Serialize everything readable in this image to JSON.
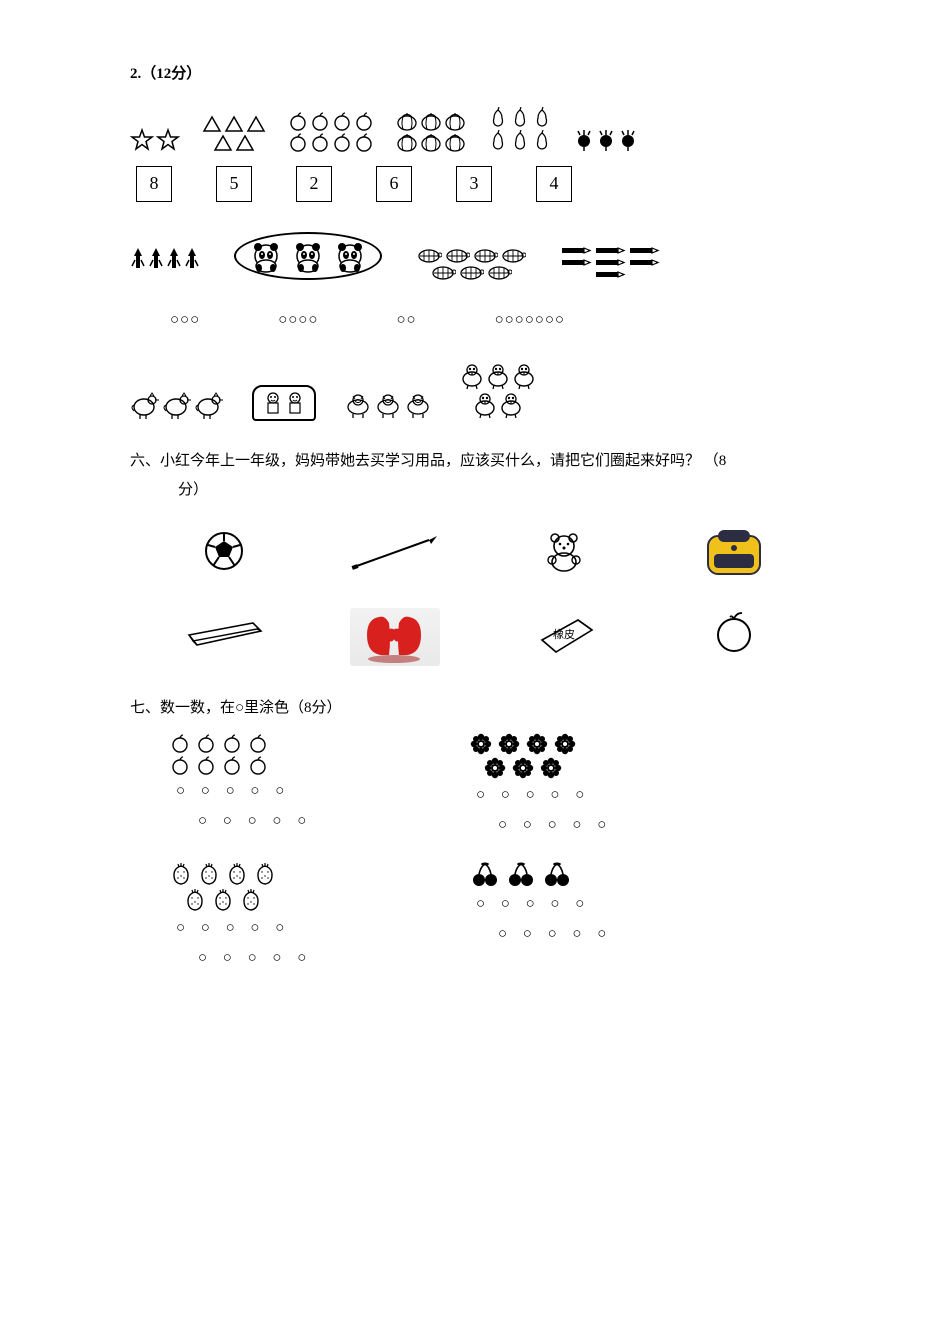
{
  "colors": {
    "text": "#000000",
    "background": "#ffffff",
    "glove_red": "#d8201e",
    "glove_shadow": "#9e1512",
    "bag_yellow": "#f0c11a",
    "bag_dark": "#2c2c42"
  },
  "q2": {
    "header": "2.（12分）",
    "items": [
      {
        "name": "stars",
        "count": 2,
        "rows": 1,
        "svg": "star"
      },
      {
        "name": "triangles",
        "count": 5,
        "rows": 2,
        "svg": "triangle"
      },
      {
        "name": "apples-a",
        "count": 8,
        "rows": 2,
        "svg": "apple-outline"
      },
      {
        "name": "pumpkins",
        "count": 6,
        "rows": 2,
        "svg": "pumpkin"
      },
      {
        "name": "pears",
        "count": 6,
        "rows": 2,
        "svg": "pear"
      },
      {
        "name": "radishes",
        "count": 3,
        "rows": 1,
        "svg": "radish"
      }
    ],
    "number_boxes": [
      8,
      5,
      2,
      6,
      3,
      4
    ],
    "row2": [
      {
        "name": "rockets",
        "count": 4,
        "svg": "rocket"
      },
      {
        "name": "pandas",
        "count": 3,
        "svg": "panda",
        "oval": true
      },
      {
        "name": "turtles",
        "count": 7,
        "rows": 2,
        "svg": "turtle"
      },
      {
        "name": "pencils",
        "count": 7,
        "rows": 3,
        "svg": "pencil"
      }
    ],
    "circle_counts": [
      3,
      4,
      2,
      7
    ],
    "row3": [
      {
        "name": "hens",
        "count": 3,
        "svg": "hen"
      },
      {
        "name": "kids",
        "count": 2,
        "svg": "kid",
        "frame": "rect"
      },
      {
        "name": "pigs",
        "count": 3,
        "svg": "pig"
      },
      {
        "name": "chicks",
        "count": 5,
        "rows": 2,
        "svg": "chick"
      }
    ]
  },
  "q6": {
    "title": "六、小红今年上一年级，妈妈带她去买学习用品，应该买什么，请把它们圈起来好吗？ （8",
    "title_cont": "分）",
    "items": [
      {
        "name": "soccer-ball",
        "svg": "ball"
      },
      {
        "name": "pencil",
        "svg": "long-pencil"
      },
      {
        "name": "teddy-bear",
        "svg": "teddy"
      },
      {
        "name": "schoolbag",
        "svg": "bag"
      },
      {
        "name": "pencil-case",
        "svg": "case"
      },
      {
        "name": "gloves",
        "svg": "gloves"
      },
      {
        "name": "eraser",
        "svg": "eraser",
        "label": "橡皮"
      },
      {
        "name": "apple",
        "svg": "apple-outline-big"
      }
    ]
  },
  "q7": {
    "title": "七、数一数，在○里涂色（8分）",
    "groups": [
      {
        "name": "apples",
        "svg": "apple-outline",
        "rows": [
          4,
          4
        ],
        "circle_rows": [
          5,
          5
        ]
      },
      {
        "name": "flowers",
        "svg": "flower",
        "rows": [
          4,
          3
        ],
        "circle_rows": [
          5,
          5
        ]
      },
      {
        "name": "strawberries",
        "svg": "strawberry",
        "rows": [
          4,
          3
        ],
        "circle_rows": [
          5,
          5
        ]
      },
      {
        "name": "cherries",
        "svg": "cherry",
        "rows": [
          3
        ],
        "circle_rows": [
          5,
          5
        ]
      }
    ]
  }
}
